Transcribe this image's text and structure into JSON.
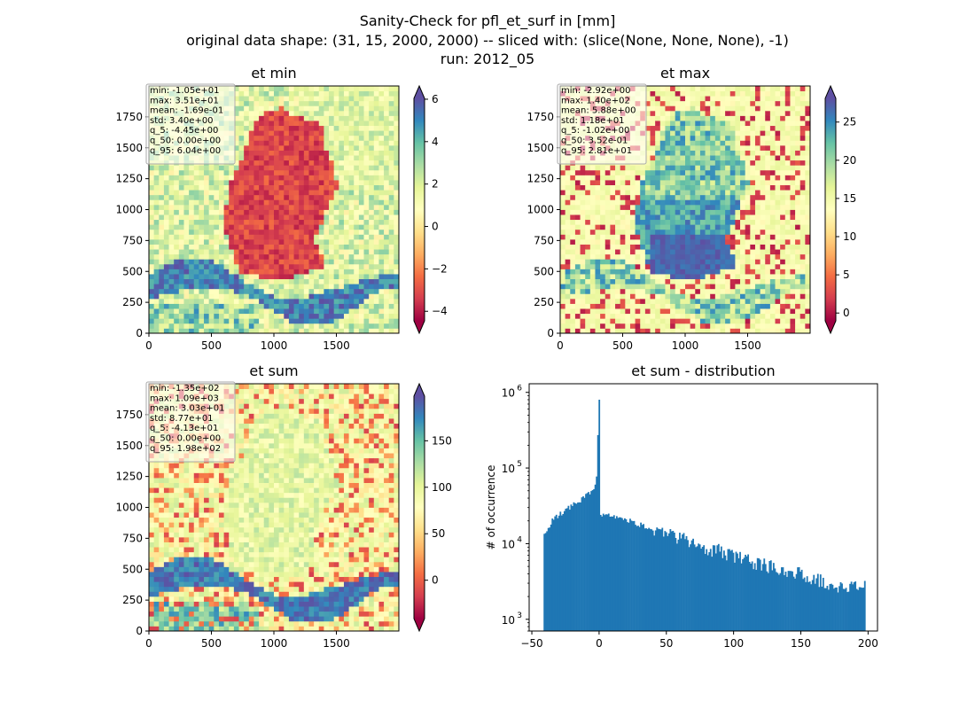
{
  "figure": {
    "title_lines": [
      "Sanity-Check for pfl_et_surf in [mm]",
      "original data shape: (31, 15, 2000, 2000) -- sliced with: (slice(None, None, None), -1)",
      "run: 2012_05"
    ]
  },
  "chart_data": [
    {
      "type": "heatmap",
      "title": "et min",
      "colormap": "Spectral",
      "xlim": [
        0,
        2000
      ],
      "ylim": [
        0,
        2000
      ],
      "x_ticks": [
        0,
        500,
        1000,
        1500
      ],
      "y_ticks": [
        0,
        250,
        500,
        750,
        1000,
        1250,
        1500,
        1750
      ],
      "colorbar": {
        "min": -4.45,
        "max": 6.04,
        "ticks": [
          -4,
          -2,
          0,
          2,
          4,
          6
        ],
        "tick_labels": [
          "−4",
          "−2",
          "0",
          "2",
          "4",
          "6"
        ],
        "extend": "both"
      },
      "stats": [
        "min: -1.05e+01",
        "max: 3.51e+01",
        "mean: -1.69e-01",
        "std: 3.40e+00",
        "q_5: -4.45e+00",
        "q_50: 0.00e+00",
        "q_95: 6.04e+00"
      ]
    },
    {
      "type": "heatmap",
      "title": "et max",
      "colormap": "Spectral",
      "xlim": [
        0,
        2000
      ],
      "ylim": [
        0,
        2000
      ],
      "x_ticks": [
        0,
        500,
        1000,
        1500
      ],
      "y_ticks": [
        0,
        250,
        500,
        750,
        1000,
        1250,
        1500,
        1750
      ],
      "colorbar": {
        "min": -1.02,
        "max": 28.1,
        "ticks": [
          0,
          5,
          10,
          15,
          20,
          25
        ],
        "tick_labels": [
          "0",
          "5",
          "10",
          "15",
          "20",
          "25"
        ],
        "extend": "both"
      },
      "stats": [
        "min: -2.92e+00",
        "max: 1.40e+02",
        "mean: 5.88e+00",
        "std: 1.18e+01",
        "q_5: -1.02e+00",
        "q_50: 3.52e-01",
        "q_95: 2.81e+01"
      ]
    },
    {
      "type": "heatmap",
      "title": "et sum",
      "colormap": "Spectral",
      "xlim": [
        0,
        2000
      ],
      "ylim": [
        0,
        2000
      ],
      "x_ticks": [
        0,
        500,
        1000,
        1500
      ],
      "y_ticks": [
        0,
        250,
        500,
        750,
        1000,
        1250,
        1500,
        1750
      ],
      "colorbar": {
        "min": -41.3,
        "max": 198,
        "ticks": [
          0,
          50,
          100,
          150
        ],
        "tick_labels": [
          "0",
          "50",
          "100",
          "150"
        ],
        "extend": "both"
      },
      "stats": [
        "min: -1.35e+02",
        "max: 1.09e+03",
        "mean: 3.03e+01",
        "std: 8.77e+01",
        "q_5: -4.13e+01",
        "q_50: 0.00e+00",
        "q_95: 1.98e+02"
      ]
    },
    {
      "type": "bar",
      "title": "et sum - distribution",
      "xlabel": "",
      "ylabel": "# of occurrence",
      "xlim": [
        -52,
        207
      ],
      "ylim": [
        700,
        1300000
      ],
      "yscale": "log",
      "color": "#1f77b4",
      "x_ticks": [
        -50,
        0,
        50,
        100,
        150,
        200
      ],
      "x_tick_labels": [
        "−50",
        "0",
        "50",
        "100",
        "150",
        "200"
      ],
      "y_ticks": [
        1000,
        10000,
        100000,
        1000000
      ],
      "y_tick_labels": [
        [
          "10",
          "3"
        ],
        [
          "10",
          "4"
        ],
        [
          "10",
          "5"
        ],
        [
          "10",
          "6"
        ]
      ],
      "bins": [
        -41.3,
        198
      ],
      "values_estimated": [
        [
          -41,
          13000
        ],
        [
          -35,
          20000
        ],
        [
          -30,
          24000
        ],
        [
          -25,
          28000
        ],
        [
          -20,
          32000
        ],
        [
          -15,
          36000
        ],
        [
          -10,
          42000
        ],
        [
          -5,
          52000
        ],
        [
          -2,
          65000
        ],
        [
          0,
          800000
        ],
        [
          1,
          24000
        ],
        [
          5,
          24000
        ],
        [
          10,
          23000
        ],
        [
          20,
          21000
        ],
        [
          30,
          18000
        ],
        [
          40,
          16000
        ],
        [
          50,
          14000
        ],
        [
          60,
          12000
        ],
        [
          70,
          10000
        ],
        [
          80,
          9000
        ],
        [
          90,
          8000
        ],
        [
          100,
          7000
        ],
        [
          110,
          6000
        ],
        [
          120,
          5500
        ],
        [
          130,
          5000
        ],
        [
          140,
          4500
        ],
        [
          150,
          4000
        ],
        [
          160,
          3500
        ],
        [
          170,
          3000
        ],
        [
          180,
          2800
        ],
        [
          190,
          2600
        ],
        [
          198,
          3000
        ]
      ]
    }
  ]
}
